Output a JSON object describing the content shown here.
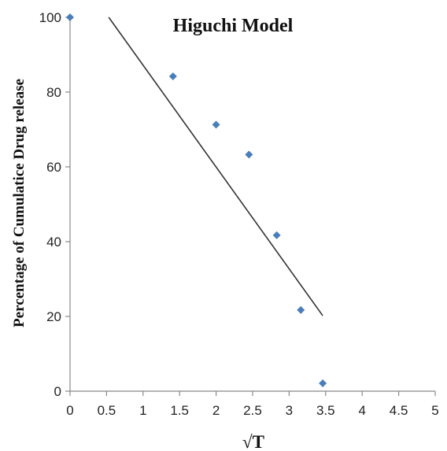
{
  "chart_data": {
    "type": "scatter",
    "title": "Higuchi Model",
    "xlabel": "√T",
    "ylabel": "Percentage of Cumulatice Drug release",
    "xlim": [
      0,
      5
    ],
    "ylim": [
      0,
      100
    ],
    "x_ticks": [
      0,
      0.5,
      1,
      1.5,
      2,
      2.5,
      3,
      3.5,
      4,
      4.5,
      5
    ],
    "x_tick_labels": [
      "0",
      "0.5",
      "1",
      "1.5",
      "2",
      "2.5",
      "3",
      "3.5",
      "4",
      "4.5",
      "5"
    ],
    "y_ticks": [
      0,
      20,
      40,
      60,
      80,
      100
    ],
    "y_tick_labels": [
      "0",
      "20",
      "40",
      "60",
      "80",
      "100"
    ],
    "grid": false,
    "legend": "none",
    "series": [
      {
        "marker": "diamond",
        "color": "#4a7ebb",
        "points": [
          {
            "x": 0,
            "y": 100
          },
          {
            "x": 1.41,
            "y": 84.2
          },
          {
            "x": 2.0,
            "y": 71.3
          },
          {
            "x": 2.45,
            "y": 63.3
          },
          {
            "x": 2.83,
            "y": 41.7
          },
          {
            "x": 3.16,
            "y": 21.7
          },
          {
            "x": 3.46,
            "y": 2.1
          }
        ]
      }
    ],
    "trendline": {
      "color": "#333333",
      "x": [
        0.53,
        3.46
      ],
      "y": [
        100,
        20.2
      ]
    }
  }
}
